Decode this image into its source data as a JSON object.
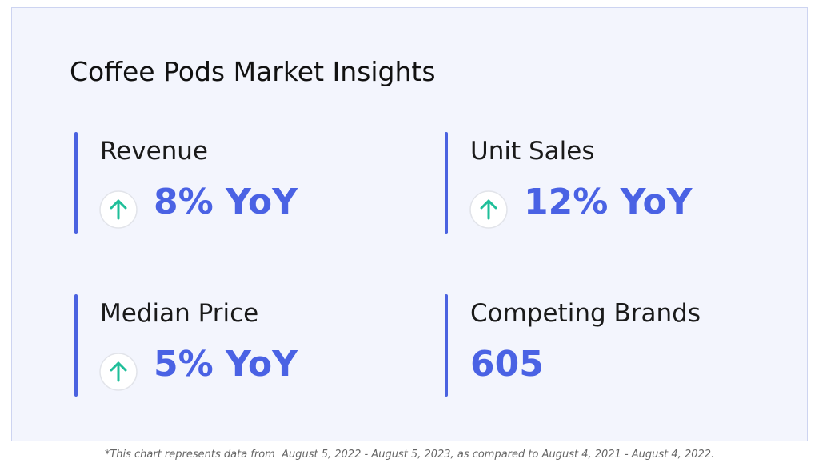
{
  "header": {
    "title": "Coffee Pods Market Insights"
  },
  "metrics": [
    {
      "label": "Revenue",
      "value": "8% YoY",
      "trend": "up"
    },
    {
      "label": "Unit Sales",
      "value": "12% YoY",
      "trend": "up"
    },
    {
      "label": "Median Price",
      "value": "5% YoY",
      "trend": "up"
    },
    {
      "label": "Competing Brands",
      "value": "605"
    }
  ],
  "footnote": "*This chart represents data from  August 5, 2022 - August 5, 2023, as compared to August 4, 2021 - August 4, 2022."
}
